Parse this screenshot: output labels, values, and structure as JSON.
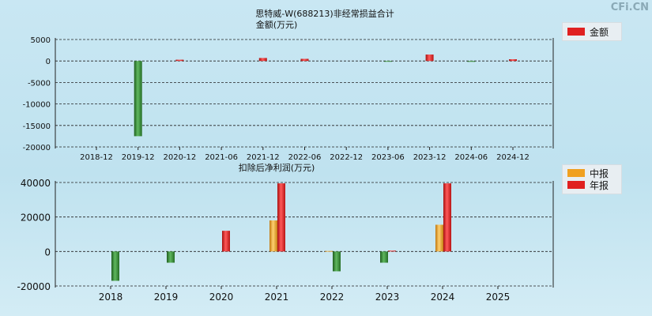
{
  "watermark": "CFi.CN",
  "colors": {
    "annual_red": "#e02020",
    "negative_green": "#2f8a2f",
    "interim_orange": "#f0a020"
  },
  "chart_data": [
    {
      "type": "bar",
      "title_lines": [
        "思特威-W(688213)非经常损益合计",
        "金额(万元)"
      ],
      "legend": [
        {
          "name": "金额",
          "color": "#e02020"
        }
      ],
      "categories": [
        "2018-12",
        "2019-12",
        "2020-12",
        "2021-06",
        "2021-12",
        "2022-06",
        "2022-12",
        "2023-06",
        "2023-12",
        "2024-06",
        "2024-12"
      ],
      "values": [
        0,
        -17500,
        300,
        0,
        700,
        500,
        0,
        -150,
        1500,
        -200,
        400
      ],
      "yticks": [
        5000,
        0,
        -5000,
        -10000,
        -15000,
        -20000
      ],
      "ylim": [
        -20000,
        5000
      ],
      "grid": true
    },
    {
      "type": "bar",
      "title": "扣除后净利润(万元)",
      "legend": [
        {
          "name": "中报",
          "color": "#f0a020"
        },
        {
          "name": "年报",
          "color": "#e02020"
        }
      ],
      "categories": [
        "2018",
        "2019",
        "2020",
        "2021",
        "2022",
        "2023",
        "2024",
        "2025"
      ],
      "series": [
        {
          "name": "中报",
          "values": [
            null,
            null,
            null,
            18000,
            300,
            -6500,
            15500,
            null
          ]
        },
        {
          "name": "年报",
          "values": [
            -17000,
            -6500,
            12000,
            39500,
            -11500,
            500,
            39500,
            null
          ]
        }
      ],
      "yticks": [
        40000,
        20000,
        0,
        -20000
      ],
      "ylim": [
        -20000,
        40000
      ],
      "grid": true
    }
  ]
}
